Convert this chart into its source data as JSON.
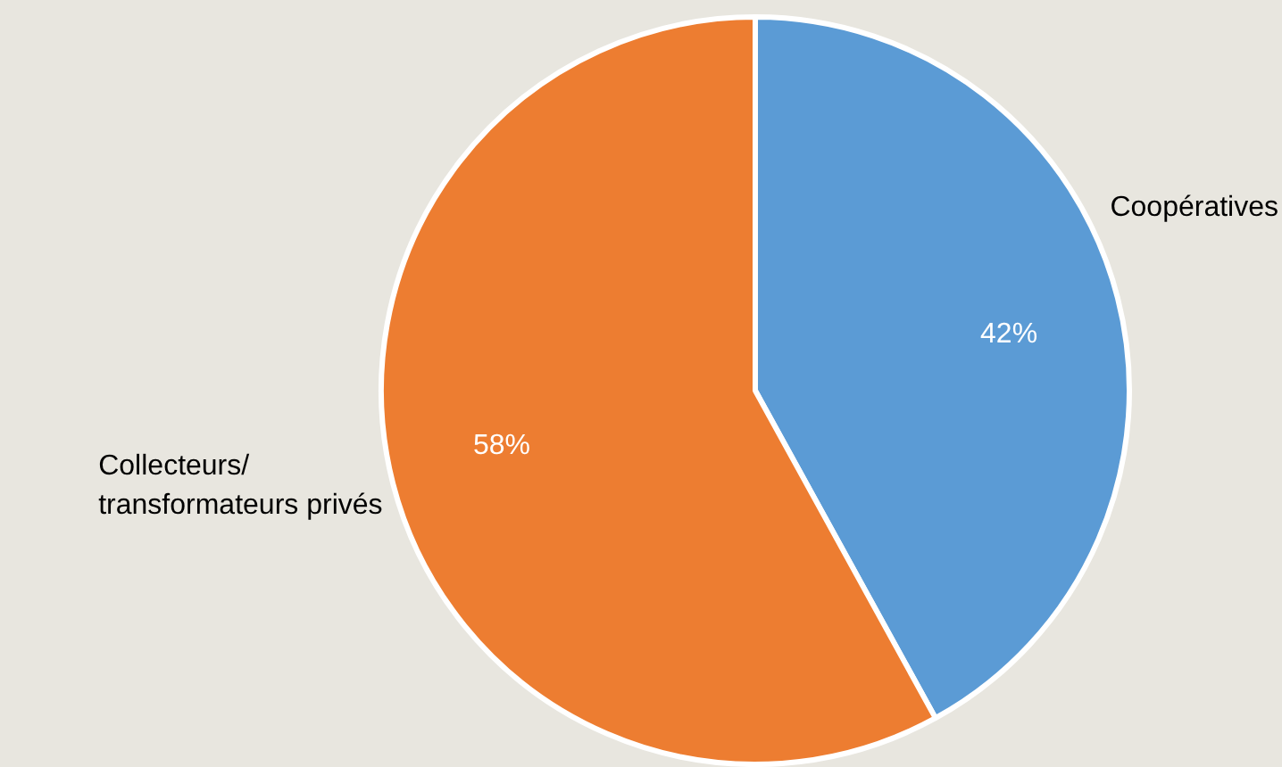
{
  "chart_data": {
    "type": "pie",
    "categories": [
      "Coopératives",
      "Collecteurs/ transformateurs privés"
    ],
    "values": [
      42,
      58
    ],
    "colors": [
      "#5b9bd5",
      "#ed7d31"
    ],
    "value_labels": [
      "42%",
      "58%"
    ]
  }
}
